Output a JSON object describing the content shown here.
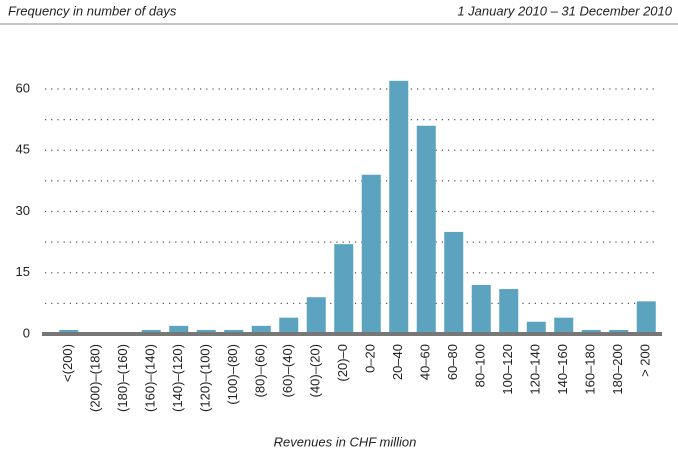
{
  "chart_data": {
    "type": "bar",
    "title": "Frequency in number of days",
    "subtitle": "1 January 2010 – 31 December 2010",
    "x_label": "Revenues in CHF million",
    "categories": [
      "<(200)",
      "(200)–(180)",
      "(180)–(160)",
      "(160)–(140)",
      "(140)–(120)",
      "(120)–(100)",
      "(100)–(80)",
      "(80)–(60)",
      "(60)–(40)",
      "(40)–(20)",
      "(20)–0",
      "0–20",
      "20–40",
      "40–60",
      "60–80",
      "80–100",
      "100–120",
      "120–140",
      "140–160",
      "160–180",
      "180–200",
      "> 200"
    ],
    "values": [
      1,
      0,
      0,
      1,
      2,
      1,
      1,
      2,
      4,
      9,
      22,
      39,
      62,
      51,
      25,
      12,
      11,
      3,
      4,
      1,
      1,
      8
    ],
    "color": "#5ba3bf",
    "ylim": [
      0,
      60
    ],
    "yticks": [
      0,
      15,
      30,
      45,
      60
    ],
    "ygrid": [
      7.5,
      15,
      22.5,
      30,
      37.5,
      45,
      52.5,
      60
    ],
    "grid": true
  }
}
